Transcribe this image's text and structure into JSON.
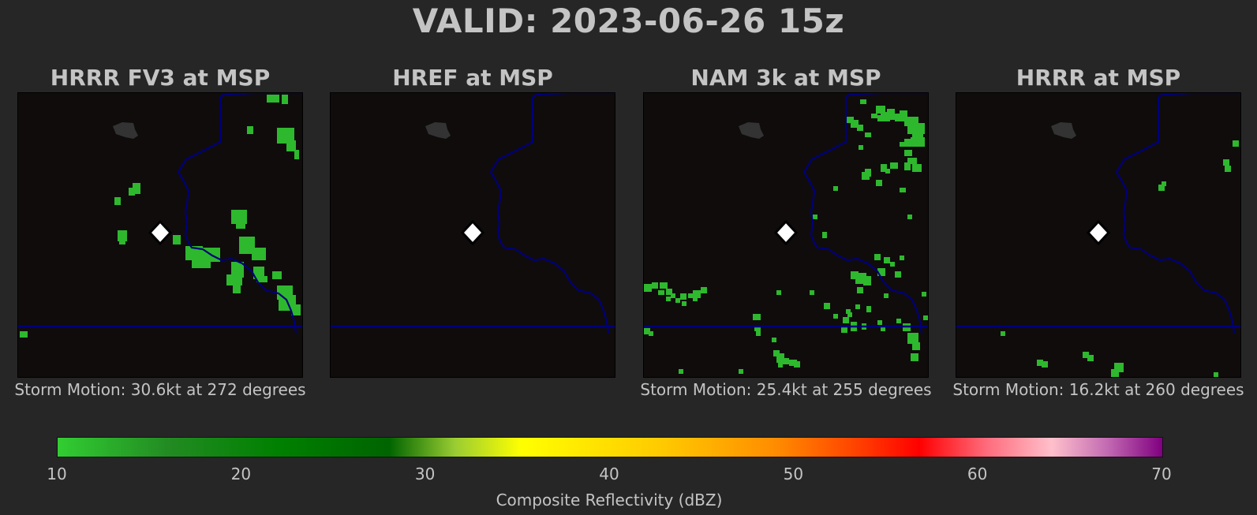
{
  "title": "VALID: 2023-06-26 15z",
  "panels": [
    {
      "title": "HRRR FV3 at MSP",
      "storm_motion": "Storm Motion: 30.6kt at 272 degrees"
    },
    {
      "title": "HREF at MSP",
      "storm_motion": ""
    },
    {
      "title": "NAM 3k at MSP",
      "storm_motion": "Storm Motion: 25.4kt at 255 degrees"
    },
    {
      "title": "HRRR at MSP",
      "storm_motion": "Storm Motion: 16.2kt at 260 degrees"
    }
  ],
  "colorbar": {
    "label": "Composite Reflectivity (dBZ)",
    "ticks": [
      "10",
      "20",
      "30",
      "40",
      "50",
      "60",
      "70"
    ],
    "range": [
      10,
      70
    ]
  },
  "colors": {
    "background": "#262626",
    "map_background": "#100c0c",
    "border_line": "#00007a",
    "lake": "#333333",
    "echo_green": "#2eb82e",
    "site_marker": "#ffffff"
  },
  "icons": {
    "site_marker": "diamond-marker-icon"
  }
}
